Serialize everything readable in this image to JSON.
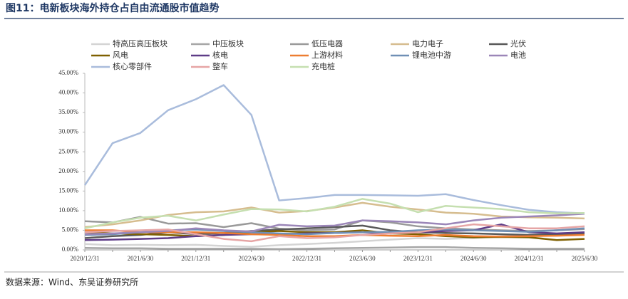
{
  "chart_data": {
    "type": "line",
    "title": "图11：电新板块海外持仓占自由流通股市值趋势",
    "source": "数据来源：Wind、东吴证券研究所",
    "categories": [
      "2020/12/31",
      null,
      "2021/6/30",
      null,
      "2021/12/31",
      null,
      "2022/6/30",
      null,
      "2022/12/31",
      null,
      "2023/6/30",
      null,
      "2023/12/31",
      null,
      "2024/6/30",
      null,
      "2024/12/31",
      null,
      "2025/6/30"
    ],
    "ylim": [
      0,
      45
    ],
    "yticks": [
      {
        "value": 0,
        "label": "0.00%"
      },
      {
        "value": 5,
        "label": "5.00%"
      },
      {
        "value": 10,
        "label": "10.00%"
      },
      {
        "value": 15,
        "label": "15.00%"
      },
      {
        "value": 20,
        "label": "20.00%"
      },
      {
        "value": 25,
        "label": "25.00%"
      },
      {
        "value": 30,
        "label": "30.00%"
      },
      {
        "value": 35,
        "label": "35.00%"
      },
      {
        "value": 40,
        "label": "40.00%"
      },
      {
        "value": 45,
        "label": "45.00%"
      }
    ],
    "grid": false,
    "series": [
      {
        "name": "特高压高压板块",
        "color": "#d4d4d4",
        "values": [
          1.5,
          1.2,
          1.3,
          1.2,
          1.3,
          1.0,
          0.8,
          1.2,
          1.5,
          1.8,
          2.2,
          2.6,
          3.0,
          2.8,
          3.0,
          3.5,
          3.8,
          3.6,
          3.9
        ]
      },
      {
        "name": "中压板块",
        "color": "#a6a6a6",
        "values": [
          0.5,
          0.4,
          0.4,
          0.3,
          0.3,
          0.3,
          0.3,
          0.2,
          0.3,
          0.4,
          0.5,
          0.6,
          0.7,
          0.7,
          0.5,
          0.4,
          0.3,
          0.3,
          0.3
        ]
      },
      {
        "name": "低压电器",
        "color": "#999999",
        "values": [
          7.3,
          7.0,
          8.4,
          6.7,
          6.8,
          5.8,
          6.8,
          5.4,
          5.0,
          5.2,
          7.5,
          7.0,
          6.0,
          5.5,
          5.2,
          5.0,
          4.8,
          5.0,
          5.3
        ]
      },
      {
        "name": "电力电子",
        "color": "#d6bd8f",
        "values": [
          5.8,
          6.5,
          7.5,
          8.9,
          9.6,
          9.8,
          10.8,
          9.5,
          9.9,
          10.8,
          12.0,
          11.0,
          10.3,
          9.5,
          9.2,
          8.5,
          8.3,
          8.2,
          8.0
        ]
      },
      {
        "name": "光伏",
        "color": "#595959",
        "values": [
          3.0,
          3.5,
          3.8,
          4.5,
          4.0,
          4.3,
          4.8,
          5.2,
          5.5,
          5.8,
          6.2,
          5.0,
          4.5,
          4.3,
          4.2,
          4.0,
          3.8,
          4.0,
          4.2
        ]
      },
      {
        "name": "风电",
        "color": "#7f6000",
        "values": [
          4.5,
          4.2,
          4.0,
          3.8,
          3.5,
          3.8,
          4.5,
          4.8,
          4.5,
          4.5,
          5.0,
          4.2,
          4.0,
          3.5,
          3.2,
          3.3,
          3.2,
          2.5,
          2.8
        ]
      },
      {
        "name": "核电",
        "color": "#5e3c87",
        "values": [
          2.5,
          2.6,
          2.8,
          3.0,
          3.5,
          3.8,
          4.0,
          4.0,
          4.2,
          4.3,
          4.5,
          4.2,
          4.5,
          4.8,
          5.0,
          6.5,
          4.5,
          4.2,
          4.5
        ]
      },
      {
        "name": "上游材料",
        "color": "#ed7d31",
        "values": [
          5.0,
          5.0,
          4.5,
          4.5,
          4.5,
          4.3,
          4.0,
          3.8,
          3.5,
          3.5,
          3.8,
          3.6,
          3.5,
          3.8,
          3.5,
          3.4,
          3.5,
          3.6,
          3.8
        ]
      },
      {
        "name": "锂电池中游",
        "color": "#6f8fb5",
        "values": [
          3.8,
          4.0,
          4.5,
          5.0,
          5.2,
          4.8,
          4.5,
          4.2,
          4.0,
          4.3,
          4.5,
          4.6,
          5.0,
          5.2,
          5.0,
          4.8,
          4.6,
          5.0,
          5.5
        ]
      },
      {
        "name": "电池",
        "color": "#9b86b8",
        "values": [
          4.0,
          4.2,
          4.5,
          4.8,
          5.5,
          5.0,
          4.7,
          6.4,
          6.0,
          6.2,
          7.5,
          7.3,
          7.0,
          6.5,
          7.5,
          8.2,
          8.5,
          8.8,
          9.2
        ]
      },
      {
        "name": "核心零部件",
        "color": "#a9bcdc",
        "values": [
          16.5,
          27.2,
          29.8,
          35.6,
          38.4,
          42.0,
          34.4,
          12.6,
          13.2,
          14.0,
          14.0,
          13.9,
          13.8,
          14.2,
          12.7,
          11.4,
          10.2,
          9.6,
          9.3
        ]
      },
      {
        "name": "整车",
        "color": "#e6a5a5",
        "values": [
          4.5,
          4.8,
          5.0,
          5.2,
          4.0,
          2.8,
          2.2,
          3.5,
          3.0,
          3.2,
          3.8,
          4.2,
          4.5,
          5.5,
          6.5,
          6.0,
          5.5,
          5.5,
          6.0
        ]
      },
      {
        "name": "充电桩",
        "color": "#c5dfb0",
        "values": [
          5.5,
          7.0,
          8.2,
          8.7,
          7.5,
          9.0,
          10.4,
          10.3,
          9.8,
          11.0,
          13.0,
          11.8,
          9.6,
          11.2,
          10.8,
          10.4,
          9.6,
          9.3,
          9.4
        ]
      }
    ]
  }
}
